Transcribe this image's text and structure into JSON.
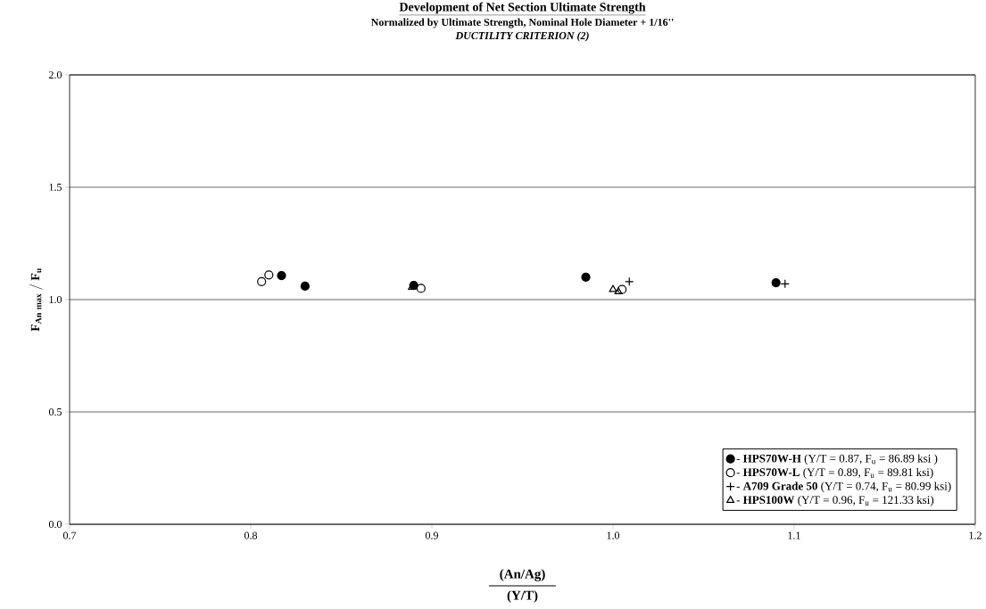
{
  "chart_data": {
    "type": "scatter",
    "title": "Development of Net Section Ultimate Strength",
    "subtitle": "Normalized by Ultimate Strength, Nominal Hole Diameter + 1/16''",
    "annotations": [
      "DUCTILITY CRITERION (2)",
      "(Y/T)"
    ],
    "xlabel": "(An/Ag)",
    "ylabel": "\\mathbf{F_{An\\ max}\\ /\\ F_{u}}",
    "xlim": [
      0.7,
      1.2
    ],
    "ylim": [
      0,
      2
    ],
    "xticks": [
      {
        "value": 0.7,
        "label": "0.7"
      },
      {
        "value": 0.8,
        "label": "0.8"
      },
      {
        "value": 0.9,
        "label": "0.9"
      },
      {
        "value": 1.0,
        "label": "1.0"
      },
      {
        "value": 1.1,
        "label": "1.1"
      },
      {
        "value": 1.2,
        "label": "1.2"
      }
    ],
    "yticks": [
      {
        "value": 0,
        "label": "0.0"
      },
      {
        "value": 0.5,
        "label": "0.5"
      },
      {
        "value": 1.0,
        "label": "1.0"
      },
      {
        "value": 1.5,
        "label": "1.5"
      },
      {
        "value": 2.0,
        "label": "2.0"
      }
    ],
    "grid": "y",
    "legend": "bottom right",
    "series": [
      {
        "name": "- **HPS70W-H**  (Y/T = 0.87, F$_{u}$ = 86.89 ksi )",
        "color": "#000000",
        "marker": "circle",
        "x": [
          0.817,
          0.83,
          0.89,
          0.985,
          1.09
        ],
        "values": [
          1.107,
          1.06,
          1.063,
          1.1,
          1.075
        ]
      },
      {
        "name": "- **HPS70W-L**  (Y/T = 0.89, F$_{u}$ = 89.81 ksi)",
        "color": "#000000",
        "marker": "circle-open",
        "x": [
          0.806,
          0.81,
          0.894,
          1.005
        ],
        "values": [
          1.08,
          1.11,
          1.05,
          1.045
        ]
      },
      {
        "name": "- **A709 Grade 50**  (Y/T = 0.74, F$_{u}$ = 80.99 ksi)",
        "color": "#000000",
        "marker": "cross",
        "x": [
          1.009,
          1.095
        ],
        "values": [
          1.08,
          1.07
        ]
      },
      {
        "name": "- **HPS100W** (Y/T = 0.96, F$_{u}$ = 121.33 ksi)",
        "color": "#000000",
        "marker": "triangle-open",
        "x": [
          0.889,
          1.0,
          1.003
        ],
        "values": [
          1.055,
          1.045,
          1.035
        ]
      }
    ]
  }
}
